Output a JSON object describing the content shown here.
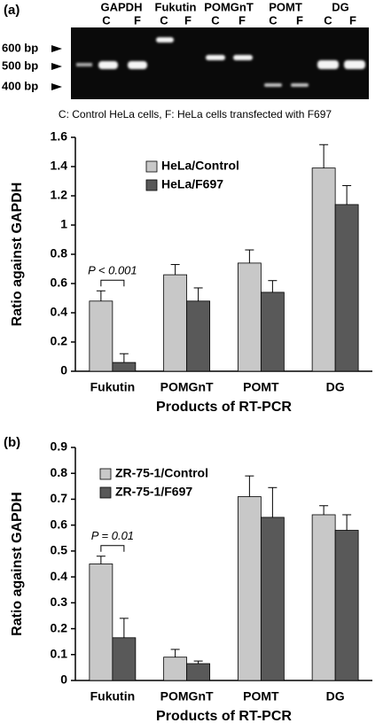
{
  "figure": {
    "panel_a_label": "(a)",
    "panel_b_label": "(b)",
    "gel_genes": [
      "GAPDH",
      "Fukutin",
      "POMGnT",
      "POMT",
      "DG"
    ],
    "gel_lanes": [
      "C",
      "F",
      "C",
      "F",
      "C",
      "F",
      "C",
      "F",
      "C",
      "F"
    ],
    "size_markers": [
      "600 bp",
      "500 bp",
      "400 bp"
    ],
    "caption": "C: Control HeLa cells, F: HeLa cells transfected with F697"
  },
  "chart_data": [
    {
      "type": "bar",
      "xlabel": "Products of RT-PCR",
      "ylabel": "Ratio against GAPDH",
      "categories": [
        "Fukutin",
        "POMGnT",
        "POMT",
        "DG"
      ],
      "series": [
        {
          "name": "HeLa/Control",
          "color": "#c8c8c8",
          "values": [
            0.48,
            0.66,
            0.74,
            1.39
          ],
          "errors": [
            0.07,
            0.07,
            0.09,
            0.16
          ]
        },
        {
          "name": "HeLa/F697",
          "color": "#595959",
          "values": [
            0.06,
            0.48,
            0.54,
            1.14
          ],
          "errors": [
            0.06,
            0.09,
            0.08,
            0.13
          ]
        }
      ],
      "ylim": [
        0,
        1.6
      ],
      "yticks": [
        0,
        0.2,
        0.4,
        0.6,
        0.8,
        1,
        1.2,
        1.4,
        1.6
      ],
      "annotation": "P < 0.001",
      "legend": "upper-left"
    },
    {
      "type": "bar",
      "xlabel": "Products of RT-PCR",
      "ylabel": "Ratio against GAPDH",
      "categories": [
        "Fukutin",
        "POMGnT",
        "POMT",
        "DG"
      ],
      "series": [
        {
          "name": "ZR-75-1/Control",
          "color": "#c8c8c8",
          "values": [
            0.45,
            0.09,
            0.71,
            0.64
          ],
          "errors": [
            0.03,
            0.03,
            0.08,
            0.035
          ]
        },
        {
          "name": "ZR-75-1/F697",
          "color": "#595959",
          "values": [
            0.165,
            0.065,
            0.63,
            0.58
          ],
          "errors": [
            0.075,
            0.01,
            0.115,
            0.06
          ]
        }
      ],
      "ylim": [
        0,
        0.9
      ],
      "yticks": [
        0,
        0.1,
        0.2,
        0.3,
        0.4,
        0.5,
        0.6,
        0.7,
        0.8,
        0.9
      ],
      "annotation": "P = 0.01",
      "legend": "upper-left"
    }
  ]
}
